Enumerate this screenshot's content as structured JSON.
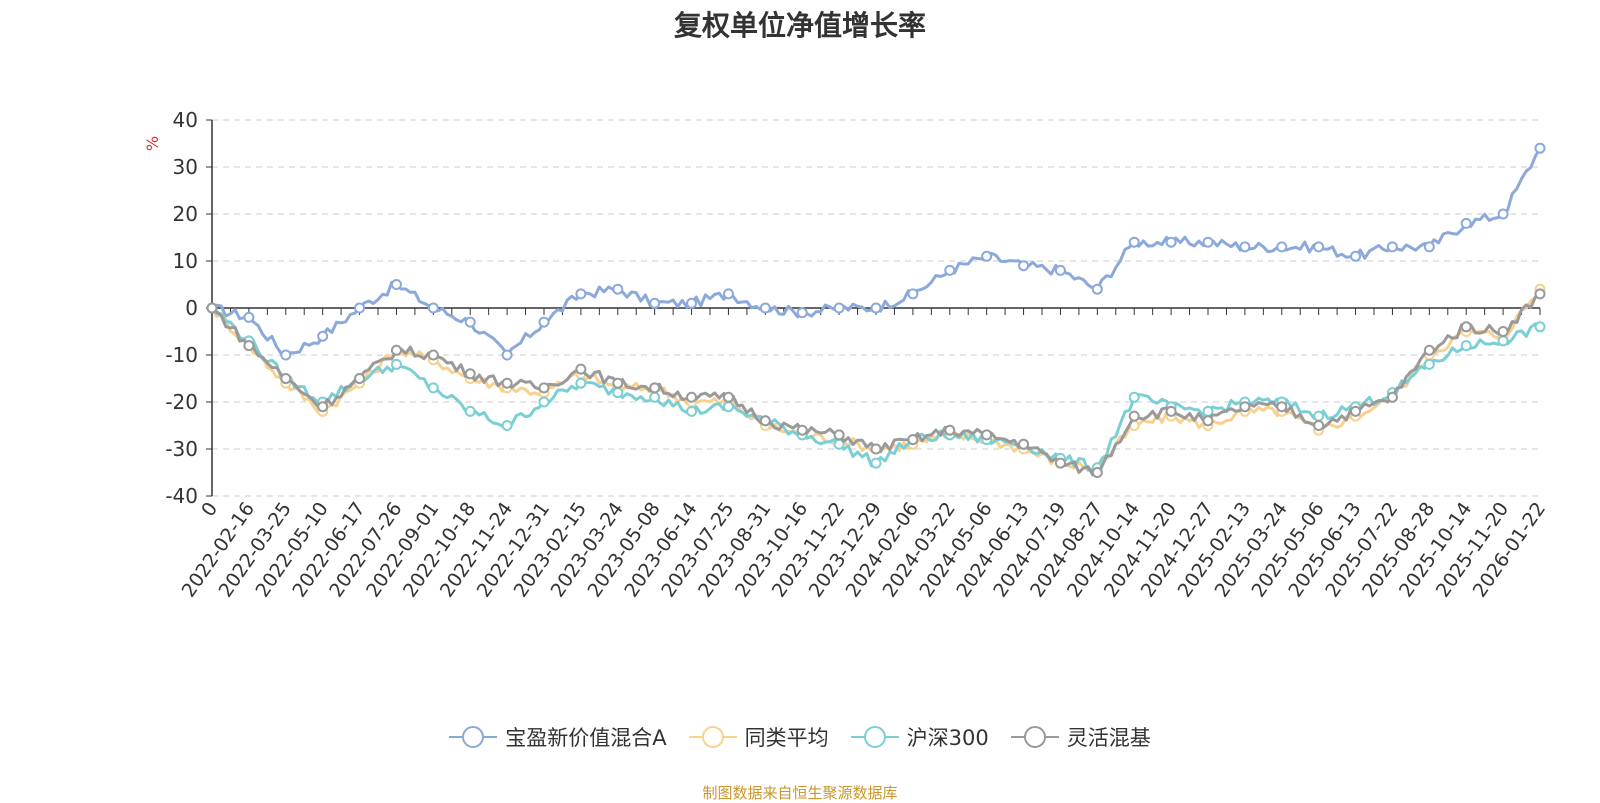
{
  "chart_data": {
    "type": "line",
    "title": "复权单位净值增长率",
    "ylabel": "%",
    "ylim": [
      -40,
      40
    ],
    "yticks": [
      40,
      30,
      20,
      10,
      0,
      -10,
      -20,
      -30,
      -40
    ],
    "x_start_label": "0",
    "x_tick_labels": [
      "2022-02-16",
      "2022-03-25",
      "2022-05-10",
      "2022-06-17",
      "2022-07-26",
      "2022-09-01",
      "2022-10-18",
      "2022-11-24",
      "2022-12-31",
      "2023-02-15",
      "2023-03-24",
      "2023-05-08",
      "2023-06-14",
      "2023-07-25",
      "2023-08-31",
      "2023-10-16",
      "2023-11-22",
      "2023-12-29",
      "2024-02-06",
      "2024-03-22",
      "2024-05-06",
      "2024-06-13",
      "2024-07-19",
      "2024-08-27",
      "2024-10-14",
      "2024-11-20",
      "2024-12-27",
      "2025-02-13",
      "2025-03-24",
      "2025-05-06",
      "2025-06-13",
      "2025-07-22",
      "2025-08-28",
      "2025-10-14",
      "2025-11-20",
      "2026-01-22"
    ],
    "grid": true,
    "legend_position": "bottom",
    "x_points": [
      "0",
      "2022-02-16",
      "2022-03-25",
      "2022-05-10",
      "2022-06-17",
      "2022-07-26",
      "2022-09-01",
      "2022-10-18",
      "2022-11-24",
      "2022-12-31",
      "2023-02-15",
      "2023-03-24",
      "2023-05-08",
      "2023-06-14",
      "2023-07-25",
      "2023-08-31",
      "2023-10-16",
      "2023-11-22",
      "2023-12-29",
      "2024-02-06",
      "2024-03-22",
      "2024-05-06",
      "2024-06-13",
      "2024-07-19",
      "2024-08-27",
      "2024-10-14",
      "2024-11-20",
      "2024-12-27",
      "2025-02-13",
      "2025-03-24",
      "2025-05-06",
      "2025-06-13",
      "2025-07-22",
      "2025-08-28",
      "2025-10-14",
      "2025-11-20",
      "2026-01-22"
    ],
    "series": [
      {
        "name": "宝盈新价值混合A",
        "color": "#8ba9da",
        "values": [
          0,
          -2,
          -10,
          -6,
          0,
          5,
          0,
          -3,
          -10,
          -3,
          3,
          4,
          1,
          1,
          3,
          0,
          -1,
          0,
          0,
          3,
          8,
          11,
          9,
          8,
          4,
          14,
          14,
          14,
          13,
          13,
          13,
          11,
          13,
          13,
          18,
          20,
          34
        ]
      },
      {
        "name": "同类平均",
        "color": "#f9d18e",
        "values": [
          0,
          -8,
          -16,
          -22,
          -16,
          -9,
          -11,
          -15,
          -17,
          -18,
          -14,
          -17,
          -17,
          -20,
          -20,
          -25,
          -27,
          -28,
          -30,
          -29,
          -27,
          -28,
          -30,
          -33,
          -34,
          -25,
          -23,
          -25,
          -22,
          -22,
          -26,
          -23,
          -19,
          -10,
          -5,
          -6,
          4
        ]
      },
      {
        "name": "沪深300",
        "color": "#7bcfd4",
        "values": [
          0,
          -7,
          -15,
          -20,
          -15,
          -12,
          -17,
          -22,
          -25,
          -20,
          -16,
          -18,
          -19,
          -22,
          -21,
          -24,
          -27,
          -29,
          -33,
          -28,
          -27,
          -28,
          -29,
          -32,
          -34,
          -19,
          -21,
          -22,
          -20,
          -20,
          -23,
          -21,
          -18,
          -12,
          -8,
          -7,
          -4
        ]
      },
      {
        "name": "灵活混基",
        "color": "#9a9a9a",
        "values": [
          0,
          -8,
          -15,
          -21,
          -15,
          -9,
          -10,
          -14,
          -16,
          -17,
          -13,
          -16,
          -17,
          -19,
          -19,
          -24,
          -26,
          -27,
          -30,
          -28,
          -26,
          -27,
          -29,
          -33,
          -35,
          -23,
          -22,
          -24,
          -21,
          -21,
          -25,
          -22,
          -19,
          -9,
          -4,
          -5,
          3
        ]
      }
    ]
  },
  "source_note": "制图数据来自恒生聚源数据库"
}
